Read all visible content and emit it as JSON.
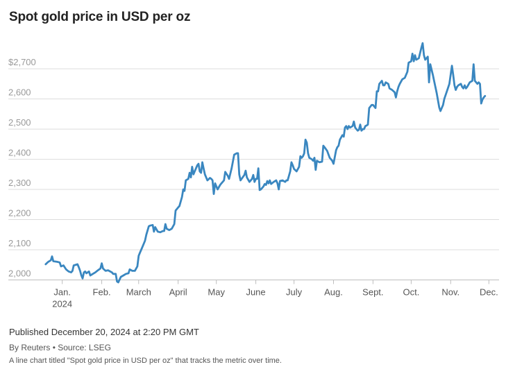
{
  "header": {
    "title": "Spot gold price in USD per oz"
  },
  "footer": {
    "published": "Published December 20, 2024 at 2:20 PM GMT",
    "byline": "By Reuters • Source: LSEG",
    "caption": "A line chart titled \"Spot gold price in USD per oz\" that tracks the metric over time."
  },
  "chart_data": {
    "type": "line",
    "title": "Spot gold price in USD per oz",
    "xlabel": "",
    "ylabel": "",
    "ylim": [
      1985,
      2790
    ],
    "xlim": [
      "2024-01-01",
      "2024-12-23"
    ],
    "grid": true,
    "yticks": [
      {
        "value": 2000,
        "label": "2,000"
      },
      {
        "value": 2100,
        "label": "2,100"
      },
      {
        "value": 2200,
        "label": "2,200"
      },
      {
        "value": 2300,
        "label": "2,300"
      },
      {
        "value": 2400,
        "label": "2,400"
      },
      {
        "value": 2500,
        "label": "2,500"
      },
      {
        "value": 2600,
        "label": "2,600"
      },
      {
        "value": 2700,
        "label": "$2,700"
      }
    ],
    "xticks": [
      {
        "date": "2024-01-15",
        "label": "Jan.",
        "sublabel": "2024"
      },
      {
        "date": "2024-02-15",
        "label": "Feb."
      },
      {
        "date": "2024-03-15",
        "label": "March"
      },
      {
        "date": "2024-04-15",
        "label": "April"
      },
      {
        "date": "2024-05-15",
        "label": "May"
      },
      {
        "date": "2024-06-15",
        "label": "June"
      },
      {
        "date": "2024-07-15",
        "label": "July"
      },
      {
        "date": "2024-08-15",
        "label": "Aug."
      },
      {
        "date": "2024-09-15",
        "label": "Sept."
      },
      {
        "date": "2024-10-15",
        "label": "Oct."
      },
      {
        "date": "2024-11-15",
        "label": "Nov."
      },
      {
        "date": "2024-12-15",
        "label": "Dec."
      }
    ],
    "series": [
      {
        "color": "#3a87c0",
        "points": [
          [
            "2024-01-02",
            2052
          ],
          [
            "2024-01-04",
            2060
          ],
          [
            "2024-01-06",
            2065
          ],
          [
            "2024-01-07",
            2078
          ],
          [
            "2024-01-08",
            2062
          ],
          [
            "2024-01-11",
            2060
          ],
          [
            "2024-01-13",
            2058
          ],
          [
            "2024-01-14",
            2045
          ],
          [
            "2024-01-16",
            2048
          ],
          [
            "2024-01-18",
            2035
          ],
          [
            "2024-01-20",
            2028
          ],
          [
            "2024-01-22",
            2025
          ],
          [
            "2024-01-23",
            2030
          ],
          [
            "2024-01-24",
            2048
          ],
          [
            "2024-01-27",
            2052
          ],
          [
            "2024-01-28",
            2042
          ],
          [
            "2024-01-29",
            2030
          ],
          [
            "2024-01-30",
            2015
          ],
          [
            "2024-01-31",
            2005
          ],
          [
            "2024-02-01",
            2025
          ],
          [
            "2024-02-02",
            2028
          ],
          [
            "2024-02-03",
            2022
          ],
          [
            "2024-02-05",
            2028
          ],
          [
            "2024-02-06",
            2015
          ],
          [
            "2024-02-08",
            2020
          ],
          [
            "2024-02-10",
            2025
          ],
          [
            "2024-02-12",
            2032
          ],
          [
            "2024-02-14",
            2038
          ],
          [
            "2024-02-15",
            2055
          ],
          [
            "2024-02-16",
            2038
          ],
          [
            "2024-02-18",
            2030
          ],
          [
            "2024-02-20",
            2032
          ],
          [
            "2024-02-23",
            2025
          ],
          [
            "2024-02-24",
            2020
          ],
          [
            "2024-02-26",
            2020
          ],
          [
            "2024-02-27",
            1995
          ],
          [
            "2024-02-28",
            1992
          ],
          [
            "2024-03-01",
            2010
          ],
          [
            "2024-03-03",
            2015
          ],
          [
            "2024-03-05",
            2020
          ],
          [
            "2024-03-07",
            2022
          ],
          [
            "2024-03-08",
            2035
          ],
          [
            "2024-03-10",
            2030
          ],
          [
            "2024-03-12",
            2030
          ],
          [
            "2024-03-14",
            2045
          ],
          [
            "2024-03-15",
            2080
          ],
          [
            "2024-03-16",
            2090
          ],
          [
            "2024-03-18",
            2110
          ],
          [
            "2024-03-20",
            2130
          ],
          [
            "2024-03-21",
            2150
          ],
          [
            "2024-03-23",
            2178
          ],
          [
            "2024-03-24",
            2180
          ],
          [
            "2024-03-26",
            2182
          ],
          [
            "2024-03-27",
            2160
          ],
          [
            "2024-03-28",
            2175
          ],
          [
            "2024-03-30",
            2160
          ],
          [
            "2024-04-01",
            2158
          ],
          [
            "2024-04-03",
            2162
          ],
          [
            "2024-04-04",
            2162
          ],
          [
            "2024-04-05",
            2185
          ],
          [
            "2024-04-06",
            2170
          ],
          [
            "2024-04-08",
            2165
          ],
          [
            "2024-04-10",
            2170
          ],
          [
            "2024-04-12",
            2185
          ],
          [
            "2024-04-13",
            2230
          ],
          [
            "2024-04-15",
            2240
          ],
          [
            "2024-04-16",
            2245
          ],
          [
            "2024-04-18",
            2275
          ],
          [
            "2024-04-19",
            2300
          ],
          [
            "2024-04-20",
            2295
          ],
          [
            "2024-04-21",
            2330
          ],
          [
            "2024-04-23",
            2335
          ],
          [
            "2024-04-24",
            2355
          ],
          [
            "2024-04-25",
            2340
          ],
          [
            "2024-04-26",
            2375
          ],
          [
            "2024-04-27",
            2350
          ],
          [
            "2024-04-28",
            2360
          ],
          [
            "2024-04-30",
            2380
          ],
          [
            "2024-05-01",
            2385
          ],
          [
            "2024-05-02",
            2360
          ],
          [
            "2024-05-03",
            2355
          ],
          [
            "2024-05-04",
            2390
          ],
          [
            "2024-05-05",
            2370
          ],
          [
            "2024-05-06",
            2350
          ],
          [
            "2024-05-08",
            2330
          ],
          [
            "2024-05-10",
            2338
          ],
          [
            "2024-05-11",
            2335
          ],
          [
            "2024-05-12",
            2330
          ],
          [
            "2024-05-13",
            2285
          ],
          [
            "2024-05-14",
            2320
          ],
          [
            "2024-05-15",
            2310
          ],
          [
            "2024-05-16",
            2300
          ],
          [
            "2024-05-18",
            2315
          ],
          [
            "2024-05-19",
            2320
          ],
          [
            "2024-05-21",
            2330
          ],
          [
            "2024-05-22",
            2358
          ],
          [
            "2024-05-24",
            2345
          ],
          [
            "2024-05-25",
            2335
          ],
          [
            "2024-05-27",
            2370
          ],
          [
            "2024-05-29",
            2415
          ],
          [
            "2024-05-31",
            2420
          ],
          [
            "2024-06-01",
            2420
          ],
          [
            "2024-06-02",
            2350
          ],
          [
            "2024-06-03",
            2330
          ],
          [
            "2024-06-05",
            2342
          ],
          [
            "2024-06-06",
            2348
          ],
          [
            "2024-06-07",
            2362
          ],
          [
            "2024-06-08",
            2340
          ],
          [
            "2024-06-10",
            2325
          ],
          [
            "2024-06-12",
            2335
          ],
          [
            "2024-06-13",
            2348
          ],
          [
            "2024-06-14",
            2325
          ],
          [
            "2024-06-15",
            2335
          ],
          [
            "2024-06-16",
            2335
          ],
          [
            "2024-06-17",
            2370
          ],
          [
            "2024-06-18",
            2298
          ],
          [
            "2024-06-19",
            2300
          ],
          [
            "2024-06-21",
            2310
          ],
          [
            "2024-06-22",
            2318
          ],
          [
            "2024-06-23",
            2315
          ],
          [
            "2024-06-24",
            2328
          ],
          [
            "2024-06-25",
            2320
          ],
          [
            "2024-06-26",
            2330
          ],
          [
            "2024-06-27",
            2318
          ],
          [
            "2024-06-29",
            2325
          ],
          [
            "2024-07-01",
            2330
          ],
          [
            "2024-07-02",
            2320
          ],
          [
            "2024-07-03",
            2300
          ],
          [
            "2024-07-04",
            2328
          ],
          [
            "2024-07-06",
            2330
          ],
          [
            "2024-07-08",
            2325
          ],
          [
            "2024-07-09",
            2330
          ],
          [
            "2024-07-10",
            2330
          ],
          [
            "2024-07-12",
            2360
          ],
          [
            "2024-07-13",
            2390
          ],
          [
            "2024-07-14",
            2380
          ],
          [
            "2024-07-15",
            2368
          ],
          [
            "2024-07-17",
            2360
          ],
          [
            "2024-07-19",
            2375
          ],
          [
            "2024-07-20",
            2410
          ],
          [
            "2024-07-21",
            2405
          ],
          [
            "2024-07-22",
            2410
          ],
          [
            "2024-07-23",
            2420
          ],
          [
            "2024-07-24",
            2465
          ],
          [
            "2024-07-25",
            2455
          ],
          [
            "2024-07-26",
            2420
          ],
          [
            "2024-07-27",
            2405
          ],
          [
            "2024-07-29",
            2400
          ],
          [
            "2024-07-30",
            2395
          ],
          [
            "2024-07-31",
            2405
          ],
          [
            "2024-08-01",
            2365
          ],
          [
            "2024-08-02",
            2395
          ],
          [
            "2024-08-04",
            2390
          ],
          [
            "2024-08-06",
            2392
          ],
          [
            "2024-08-07",
            2445
          ],
          [
            "2024-08-08",
            2440
          ],
          [
            "2024-08-10",
            2428
          ],
          [
            "2024-08-12",
            2405
          ],
          [
            "2024-08-14",
            2395
          ],
          [
            "2024-08-15",
            2385
          ],
          [
            "2024-08-17",
            2430
          ],
          [
            "2024-08-18",
            2440
          ],
          [
            "2024-08-19",
            2445
          ],
          [
            "2024-08-20",
            2465
          ],
          [
            "2024-08-22",
            2480
          ],
          [
            "2024-08-23",
            2475
          ],
          [
            "2024-08-24",
            2505
          ],
          [
            "2024-08-25",
            2510
          ],
          [
            "2024-08-26",
            2500
          ],
          [
            "2024-08-27",
            2510
          ],
          [
            "2024-08-28",
            2505
          ],
          [
            "2024-08-30",
            2510
          ],
          [
            "2024-08-31",
            2525
          ],
          [
            "2024-09-01",
            2505
          ],
          [
            "2024-09-02",
            2500
          ],
          [
            "2024-09-03",
            2495
          ],
          [
            "2024-09-04",
            2498
          ],
          [
            "2024-09-05",
            2515
          ],
          [
            "2024-09-06",
            2495
          ],
          [
            "2024-09-07",
            2500
          ],
          [
            "2024-09-08",
            2500
          ],
          [
            "2024-09-09",
            2510
          ],
          [
            "2024-09-10",
            2512
          ],
          [
            "2024-09-11",
            2515
          ],
          [
            "2024-09-12",
            2570
          ],
          [
            "2024-09-13",
            2575
          ],
          [
            "2024-09-14",
            2580
          ],
          [
            "2024-09-15",
            2580
          ],
          [
            "2024-09-17",
            2570
          ],
          [
            "2024-09-18",
            2625
          ],
          [
            "2024-09-19",
            2625
          ],
          [
            "2024-09-20",
            2650
          ],
          [
            "2024-09-22",
            2660
          ],
          [
            "2024-09-23",
            2645
          ],
          [
            "2024-09-24",
            2645
          ],
          [
            "2024-09-25",
            2655
          ],
          [
            "2024-09-27",
            2650
          ],
          [
            "2024-09-28",
            2635
          ],
          [
            "2024-09-30",
            2630
          ],
          [
            "2024-10-02",
            2622
          ],
          [
            "2024-10-03",
            2605
          ],
          [
            "2024-10-04",
            2625
          ],
          [
            "2024-10-05",
            2640
          ],
          [
            "2024-10-06",
            2650
          ],
          [
            "2024-10-08",
            2665
          ],
          [
            "2024-10-10",
            2670
          ],
          [
            "2024-10-12",
            2690
          ],
          [
            "2024-10-13",
            2720
          ],
          [
            "2024-10-15",
            2725
          ],
          [
            "2024-10-16",
            2750
          ],
          [
            "2024-10-17",
            2725
          ],
          [
            "2024-10-18",
            2745
          ],
          [
            "2024-10-19",
            2730
          ],
          [
            "2024-10-21",
            2735
          ],
          [
            "2024-10-23",
            2770
          ],
          [
            "2024-10-24",
            2785
          ],
          [
            "2024-10-25",
            2745
          ],
          [
            "2024-10-26",
            2730
          ],
          [
            "2024-10-28",
            2740
          ],
          [
            "2024-10-29",
            2655
          ],
          [
            "2024-10-30",
            2715
          ],
          [
            "2024-11-01",
            2680
          ],
          [
            "2024-11-02",
            2660
          ],
          [
            "2024-11-04",
            2620
          ],
          [
            "2024-11-06",
            2572
          ],
          [
            "2024-11-07",
            2560
          ],
          [
            "2024-11-09",
            2580
          ],
          [
            "2024-11-10",
            2600
          ],
          [
            "2024-11-12",
            2625
          ],
          [
            "2024-11-14",
            2650
          ],
          [
            "2024-11-16",
            2710
          ],
          [
            "2024-11-17",
            2680
          ],
          [
            "2024-11-18",
            2645
          ],
          [
            "2024-11-19",
            2630
          ],
          [
            "2024-11-20",
            2640
          ],
          [
            "2024-11-21",
            2645
          ],
          [
            "2024-11-23",
            2650
          ],
          [
            "2024-11-24",
            2640
          ],
          [
            "2024-11-25",
            2635
          ],
          [
            "2024-11-26",
            2645
          ],
          [
            "2024-11-27",
            2635
          ],
          [
            "2024-11-28",
            2640
          ],
          [
            "2024-11-30",
            2655
          ],
          [
            "2024-12-02",
            2660
          ],
          [
            "2024-12-03",
            2715
          ],
          [
            "2024-12-04",
            2660
          ],
          [
            "2024-12-05",
            2655
          ],
          [
            "2024-12-06",
            2650
          ],
          [
            "2024-12-07",
            2655
          ],
          [
            "2024-12-08",
            2650
          ],
          [
            "2024-12-09",
            2585
          ],
          [
            "2024-12-10",
            2598
          ],
          [
            "2024-12-11",
            2605
          ],
          [
            "2024-12-12",
            2610
          ]
        ]
      }
    ]
  }
}
